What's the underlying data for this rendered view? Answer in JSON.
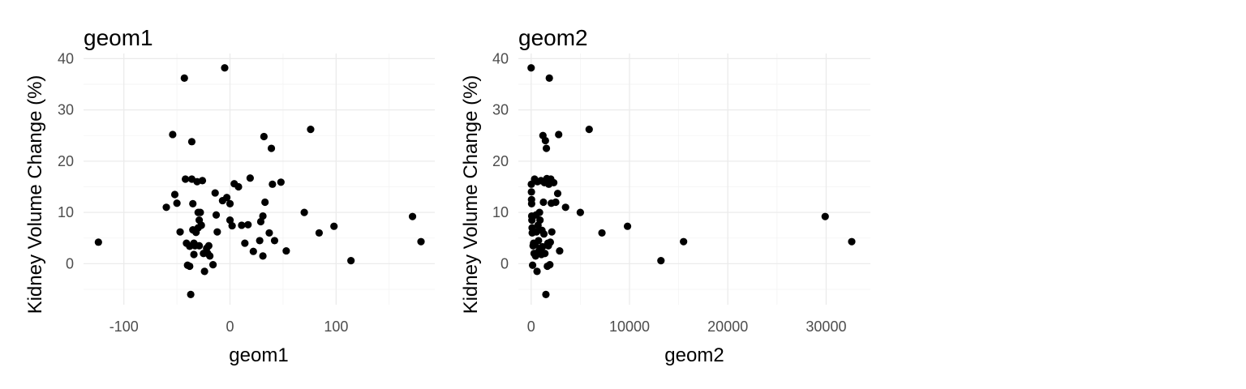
{
  "chart_data": [
    {
      "type": "scatter",
      "title": "geom1",
      "xlabel": "geom1",
      "ylabel": "Kidney Volume Change (%)",
      "xlim": [
        -138,
        193
      ],
      "ylim": [
        -8,
        41
      ],
      "xticks": [
        -100,
        0,
        100
      ],
      "xticks_minor": [
        -50,
        50,
        150
      ],
      "yticks": [
        0,
        10,
        20,
        30,
        40
      ],
      "yticks_minor": [
        -5,
        5,
        15,
        25,
        35
      ],
      "grid": true,
      "color": "#000000",
      "points": [
        {
          "x": -124,
          "y": 4.2
        },
        {
          "x": -60,
          "y": 11
        },
        {
          "x": -54,
          "y": 25.2
        },
        {
          "x": -52,
          "y": 13.5
        },
        {
          "x": -50,
          "y": 11.8
        },
        {
          "x": -47,
          "y": 6.2
        },
        {
          "x": -43,
          "y": 36.2
        },
        {
          "x": -42,
          "y": 16.5
        },
        {
          "x": -41,
          "y": 4
        },
        {
          "x": -40,
          "y": -0.3
        },
        {
          "x": -38,
          "y": 3.4
        },
        {
          "x": -38,
          "y": -0.5
        },
        {
          "x": -37,
          "y": -6
        },
        {
          "x": -36,
          "y": 23.8
        },
        {
          "x": -36,
          "y": 16.5
        },
        {
          "x": -35,
          "y": 11.7
        },
        {
          "x": -35,
          "y": 6.6
        },
        {
          "x": -34,
          "y": 4
        },
        {
          "x": -34,
          "y": 1.8
        },
        {
          "x": -33,
          "y": 3.5
        },
        {
          "x": -32,
          "y": 6.1
        },
        {
          "x": -31,
          "y": 16
        },
        {
          "x": -30,
          "y": 10
        },
        {
          "x": -30,
          "y": 7
        },
        {
          "x": -29,
          "y": 8.5
        },
        {
          "x": -29,
          "y": 3.5
        },
        {
          "x": -28,
          "y": 10
        },
        {
          "x": -27,
          "y": 7.5
        },
        {
          "x": -26,
          "y": 16.2
        },
        {
          "x": -25,
          "y": 2
        },
        {
          "x": -24,
          "y": -1.5
        },
        {
          "x": -22,
          "y": 3
        },
        {
          "x": -21,
          "y": 2
        },
        {
          "x": -20,
          "y": 3.5
        },
        {
          "x": -19,
          "y": 1.5
        },
        {
          "x": -16,
          "y": -0.2
        },
        {
          "x": -14,
          "y": 13.8
        },
        {
          "x": -13,
          "y": 9.5
        },
        {
          "x": -12,
          "y": 6.2
        },
        {
          "x": -7,
          "y": 12.3
        },
        {
          "x": -5,
          "y": 38.2
        },
        {
          "x": -3,
          "y": 12.9
        },
        {
          "x": 0,
          "y": 11.7
        },
        {
          "x": 0,
          "y": 8.5
        },
        {
          "x": 2,
          "y": 7.4
        },
        {
          "x": 4,
          "y": 15.6
        },
        {
          "x": 8,
          "y": 15
        },
        {
          "x": 11,
          "y": 7.5
        },
        {
          "x": 14,
          "y": 4
        },
        {
          "x": 17,
          "y": 7.6
        },
        {
          "x": 19,
          "y": 16.7
        },
        {
          "x": 22,
          "y": 2.4
        },
        {
          "x": 28,
          "y": 4.5
        },
        {
          "x": 29,
          "y": 8.2
        },
        {
          "x": 31,
          "y": 9.3
        },
        {
          "x": 31,
          "y": 1.5
        },
        {
          "x": 32,
          "y": 24.8
        },
        {
          "x": 33,
          "y": 12
        },
        {
          "x": 37,
          "y": 6
        },
        {
          "x": 39,
          "y": 22.5
        },
        {
          "x": 40,
          "y": 15.5
        },
        {
          "x": 42,
          "y": 4.5
        },
        {
          "x": 48,
          "y": 15.9
        },
        {
          "x": 53,
          "y": 2.5
        },
        {
          "x": 70,
          "y": 10
        },
        {
          "x": 76,
          "y": 26.2
        },
        {
          "x": 84,
          "y": 6
        },
        {
          "x": 98,
          "y": 7.3
        },
        {
          "x": 114,
          "y": 0.6
        },
        {
          "x": 172,
          "y": 9.2
        },
        {
          "x": 180,
          "y": 4.3
        }
      ]
    },
    {
      "type": "scatter",
      "title": "geom2",
      "xlabel": "geom2",
      "ylabel": "Kidney Volume Change (%)",
      "xlim": [
        -1300,
        34500
      ],
      "ylim": [
        -8,
        41
      ],
      "xticks": [
        0,
        10000,
        20000,
        30000
      ],
      "xticks_minor": [
        5000,
        15000,
        25000
      ],
      "yticks": [
        0,
        10,
        20,
        30,
        40
      ],
      "yticks_minor": [
        -5,
        5,
        15,
        25,
        35
      ],
      "grid": true,
      "color": "#000000",
      "points": [
        {
          "x": 0,
          "y": 38.2
        },
        {
          "x": 20,
          "y": 15.5
        },
        {
          "x": 30,
          "y": 14
        },
        {
          "x": 40,
          "y": 12.5
        },
        {
          "x": 50,
          "y": 11.7
        },
        {
          "x": 60,
          "y": 9.3
        },
        {
          "x": 80,
          "y": 8.5
        },
        {
          "x": 100,
          "y": 7
        },
        {
          "x": 110,
          "y": 6
        },
        {
          "x": 150,
          "y": -0.3
        },
        {
          "x": 200,
          "y": 3.5
        },
        {
          "x": 250,
          "y": 4
        },
        {
          "x": 300,
          "y": 2
        },
        {
          "x": 350,
          "y": 16.5
        },
        {
          "x": 400,
          "y": 3.7
        },
        {
          "x": 450,
          "y": 1.5
        },
        {
          "x": 500,
          "y": 9.5
        },
        {
          "x": 550,
          "y": 6.2
        },
        {
          "x": 600,
          "y": -1.5
        },
        {
          "x": 650,
          "y": 16
        },
        {
          "x": 700,
          "y": 7.5
        },
        {
          "x": 750,
          "y": 4.5
        },
        {
          "x": 800,
          "y": 2.5
        },
        {
          "x": 850,
          "y": 10
        },
        {
          "x": 900,
          "y": 8.5
        },
        {
          "x": 950,
          "y": 3
        },
        {
          "x": 1000,
          "y": 16.2
        },
        {
          "x": 1050,
          "y": 1.8
        },
        {
          "x": 1100,
          "y": 6.5
        },
        {
          "x": 1150,
          "y": 3.3
        },
        {
          "x": 1200,
          "y": 25
        },
        {
          "x": 1250,
          "y": 12
        },
        {
          "x": 1300,
          "y": 5.8
        },
        {
          "x": 1350,
          "y": 15.8
        },
        {
          "x": 1400,
          "y": 2
        },
        {
          "x": 1450,
          "y": 24
        },
        {
          "x": 1500,
          "y": -6
        },
        {
          "x": 1550,
          "y": 22.5
        },
        {
          "x": 1600,
          "y": 16.6
        },
        {
          "x": 1650,
          "y": -0.5
        },
        {
          "x": 1700,
          "y": 4
        },
        {
          "x": 1750,
          "y": 3.5
        },
        {
          "x": 1800,
          "y": 15.5
        },
        {
          "x": 1850,
          "y": 36.2
        },
        {
          "x": 1900,
          "y": -0.2
        },
        {
          "x": 1950,
          "y": 4.2
        },
        {
          "x": 2000,
          "y": 16.5
        },
        {
          "x": 2050,
          "y": 11.8
        },
        {
          "x": 2100,
          "y": 6.2
        },
        {
          "x": 2300,
          "y": 15.8
        },
        {
          "x": 2500,
          "y": 12
        },
        {
          "x": 2700,
          "y": 13.7
        },
        {
          "x": 2800,
          "y": 25.2
        },
        {
          "x": 2900,
          "y": 2.5
        },
        {
          "x": 3500,
          "y": 11
        },
        {
          "x": 5000,
          "y": 10
        },
        {
          "x": 5900,
          "y": 26.2
        },
        {
          "x": 7200,
          "y": 6
        },
        {
          "x": 9800,
          "y": 7.3
        },
        {
          "x": 13200,
          "y": 0.6
        },
        {
          "x": 15500,
          "y": 4.3
        },
        {
          "x": 29900,
          "y": 9.2
        },
        {
          "x": 32600,
          "y": 4.3
        }
      ]
    }
  ]
}
